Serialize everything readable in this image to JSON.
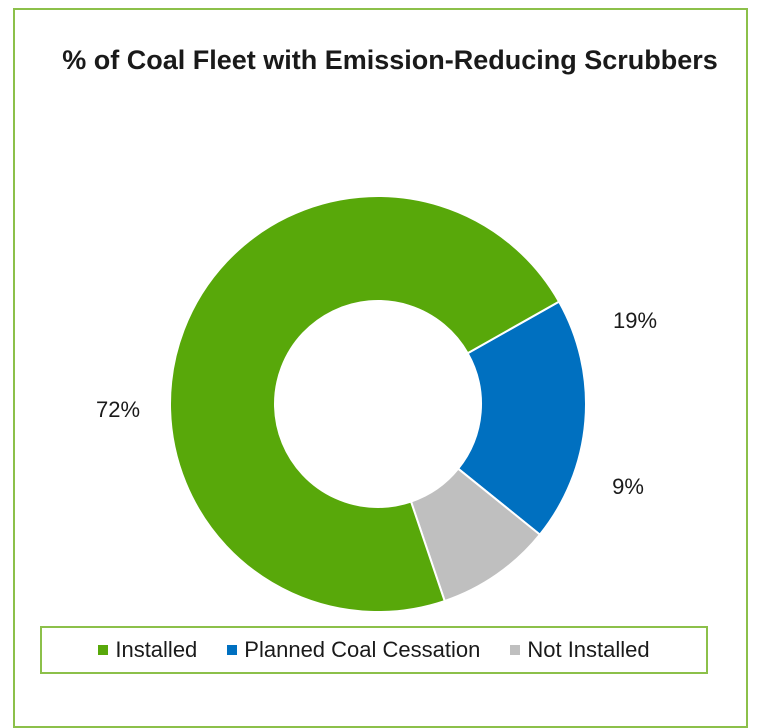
{
  "chart_data": {
    "type": "pie",
    "donut": true,
    "title": "% of Coal Fleet with Emission-Reducing Scrubbers",
    "categories": [
      "Installed",
      "Planned Coal Cessation",
      "Not Installed"
    ],
    "values": [
      72,
      19,
      9
    ],
    "data_labels": [
      "72%",
      "19%",
      "9%"
    ],
    "colors": [
      "#58a80a",
      "#0070c0",
      "#bfbfbf"
    ],
    "legend_position": "bottom"
  }
}
